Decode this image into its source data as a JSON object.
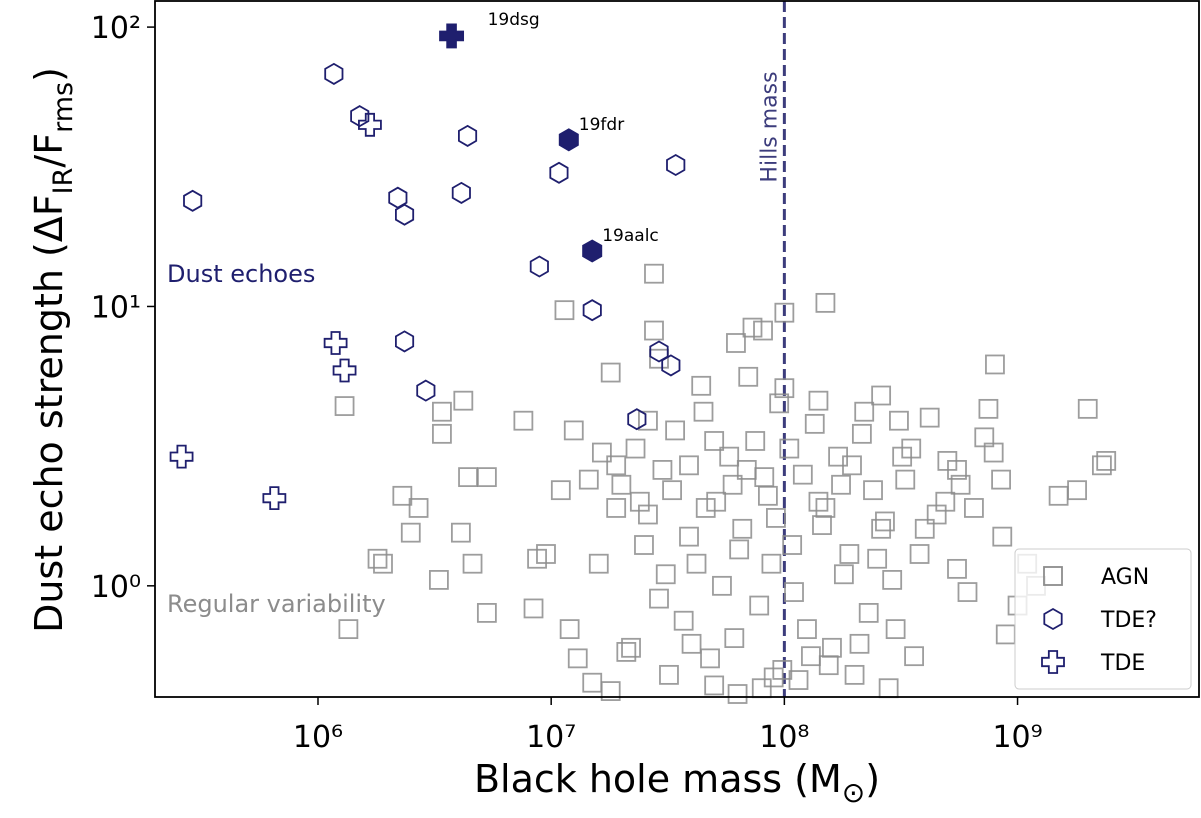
{
  "chart_data": {
    "type": "scatter",
    "xlabel": [
      "Black hole mass (M",
      "⊙",
      ")"
    ],
    "ylabel": [
      "Dust echo strength (ΔF",
      "IR",
      "/F",
      "rms",
      ")"
    ],
    "xscale": "log",
    "yscale": "log",
    "xlim": [
      200000.0,
      6000000000.0
    ],
    "ylim": [
      0.4,
      124
    ],
    "xticks": [
      {
        "value": 1000000.0,
        "label": "10⁶"
      },
      {
        "value": 10000000.0,
        "label": "10⁷"
      },
      {
        "value": 100000000.0,
        "label": "10⁸"
      },
      {
        "value": 1000000000.0,
        "label": "10⁹"
      }
    ],
    "yticks": [
      {
        "value": 1,
        "label": "10⁰"
      },
      {
        "value": 10,
        "label": "10¹"
      },
      {
        "value": 100,
        "label": "10²"
      }
    ],
    "vline": {
      "value": 100000000.0,
      "label": "Hills mass",
      "color": "#3c3c7c"
    },
    "annotations": [
      {
        "text": "Dust echoes",
        "color": "#1f1f6e"
      },
      {
        "text": "Regular variability",
        "color": "#8c8c8c"
      }
    ],
    "legend": "lower right",
    "series": [
      {
        "name": "AGN",
        "color": "#8c8c8c",
        "marker": "square",
        "x": [
          1300000.0,
          1350000.0,
          1800000.0,
          1900000.0,
          2300000.0,
          2500000.0,
          2700000.0,
          3300000.0,
          3400000.0,
          3400000.0,
          4200000.0,
          4100000.0,
          4600000.0,
          4400000.0,
          5300000.0,
          5300000.0,
          7600000.0,
          8400000.0,
          8700000.0,
          11400000.0,
          27600000.0,
          27600000.0,
          150000000.0,
          100000000.0,
          73000000.0,
          81000000.0,
          29000000.0,
          18000000.0,
          26000000.0,
          62000000.0,
          2000000000.0,
          2400000000.0,
          2300000000.0,
          1800000000.0,
          1200000000.0,
          800000000.0,
          750000000.0,
          790000000.0,
          860000000.0,
          1100000000.0,
          1000000000.0,
          890000000.0,
          610000000.0,
          420000000.0,
          350000000.0,
          300000000.0,
          260000000.0,
          380000000.0,
          490000000.0,
          550000000.0,
          20000000.0,
          23000000.0,
          26000000.0,
          30000000.0,
          34000000.0,
          39000000.0,
          45000000.0,
          51000000.0,
          58000000.0,
          66000000.0,
          75000000.0,
          85000000.0,
          95000000.0,
          108000000.0,
          120000000.0,
          135000000.0,
          150000000.0,
          170000000.0,
          190000000.0,
          215000000.0,
          240000000.0,
          270000000.0,
          16000000.0,
          19000000.0,
          22000000.0,
          25000000.0,
          29000000.0,
          33000000.0,
          37000000.0,
          42000000.0,
          48000000.0,
          54000000.0,
          61000000.0,
          69000000.0,
          78000000.0,
          88000000.0,
          98000000.0,
          110000000.0,
          125000000.0,
          140000000.0,
          160000000.0,
          180000000.0,
          200000000.0,
          230000000.0,
          260000000.0,
          290000000.0,
          330000000.0,
          13000000.0,
          15000000.0,
          12000000.0,
          18000000.0,
          21000000.0,
          32000000.0,
          40000000.0,
          50000000.0,
          63000000.0,
          80000000.0,
          90000000.0,
          115000000.0,
          130000000.0,
          155000000.0,
          210000000.0,
          280000000.0,
          360000000.0,
          450000000.0,
          570000000.0,
          720000000.0,
          650000000.0,
          500000000.0,
          400000000.0,
          320000000.0,
          250000000.0,
          195000000.0,
          145000000.0,
          105000000.0,
          82000000.0,
          64000000.0,
          50000000.0,
          39000000.0,
          31000000.0,
          24000000.0,
          19000000.0,
          14500000.0,
          11000000.0,
          9500000.0,
          12500000.0,
          16500000.0,
          44000000.0,
          70000000.0,
          100000000.0,
          140000000.0,
          220000000.0,
          46000000.0,
          92000000.0,
          175000000.0,
          310000000.0,
          550000000.0,
          850000000.0,
          1500000000.0,
          60000000.0
        ],
        "y": [
          4.4,
          0.7,
          1.25,
          1.2,
          2.1,
          1.55,
          1.9,
          1.05,
          4.2,
          3.5,
          4.6,
          1.55,
          1.2,
          2.45,
          2.45,
          0.8,
          3.9,
          0.83,
          1.25,
          9.7,
          13.1,
          8.2,
          10.3,
          9.5,
          8.4,
          8.2,
          6.5,
          5.8,
          3.9,
          7.4,
          4.3,
          2.8,
          2.7,
          2.2,
          1.0,
          6.2,
          4.3,
          3.0,
          1.5,
          1.2,
          0.85,
          0.67,
          0.95,
          4.0,
          3.1,
          0.7,
          4.8,
          1.3,
          2.0,
          2.6,
          2.3,
          3.1,
          1.8,
          2.6,
          3.6,
          1.5,
          4.2,
          2.0,
          2.9,
          1.6,
          3.3,
          2.1,
          4.5,
          1.4,
          2.5,
          3.8,
          1.9,
          2.9,
          1.3,
          3.5,
          2.2,
          1.7,
          1.2,
          1.9,
          0.6,
          1.4,
          0.9,
          2.2,
          0.75,
          1.2,
          0.55,
          1.0,
          0.65,
          2.6,
          0.85,
          1.2,
          0.5,
          0.95,
          0.7,
          2.0,
          0.6,
          1.1,
          0.48,
          0.8,
          1.6,
          1.05,
          2.4,
          0.55,
          0.45,
          0.7,
          0.42,
          0.58,
          0.48,
          0.62,
          0.44,
          0.41,
          0.43,
          0.47,
          0.46,
          0.56,
          0.52,
          0.62,
          0.43,
          0.56,
          1.8,
          2.3,
          3.4,
          1.9,
          2.8,
          1.6,
          2.9,
          1.25,
          2.7,
          1.65,
          3.1,
          2.45,
          1.35,
          3.3,
          2.7,
          1.1,
          2.0,
          2.7,
          2.4,
          2.2,
          1.3,
          3.6,
          3.0,
          5.2,
          5.6,
          5.1,
          4.6,
          4.2,
          1.9,
          1.75,
          2.3,
          3.9,
          1.15,
          2.4,
          2.1,
          2.3
        ]
      },
      {
        "name": "TDE?",
        "color": "#1f1f6e",
        "marker": "hexagon",
        "x": [
          290000.0,
          1170000.0,
          1510000.0,
          2200000.0,
          2350000.0,
          4380000.0,
          4120000.0,
          10800000.0,
          34200000.0,
          8900000.0,
          15000000.0,
          11900000.0,
          15000000.0,
          2350000.0,
          2900000.0,
          29000000.0,
          32600000.0,
          23300000.0
        ],
        "y": [
          23.9,
          68,
          48,
          24.5,
          21.3,
          40.8,
          25.5,
          30.1,
          32.1,
          13.9,
          15.8,
          39.5,
          9.7,
          7.5,
          5.0,
          6.9,
          6.15,
          3.95
        ],
        "labels": [
          null,
          null,
          null,
          null,
          null,
          null,
          null,
          null,
          null,
          null,
          "19aalc",
          "19fdr",
          null,
          null,
          null,
          null,
          null,
          null
        ]
      },
      {
        "name": "TDE",
        "color": "#1f1f6e",
        "marker": "plus",
        "x": [
          3740000.0,
          1670000.0,
          1190000.0,
          1300000.0,
          260000.0,
          650000.0
        ],
        "y": [
          93,
          44.7,
          7.4,
          5.9,
          2.9,
          2.06
        ],
        "labels": [
          "19dsg",
          null,
          null,
          null,
          null,
          null
        ]
      }
    ]
  }
}
